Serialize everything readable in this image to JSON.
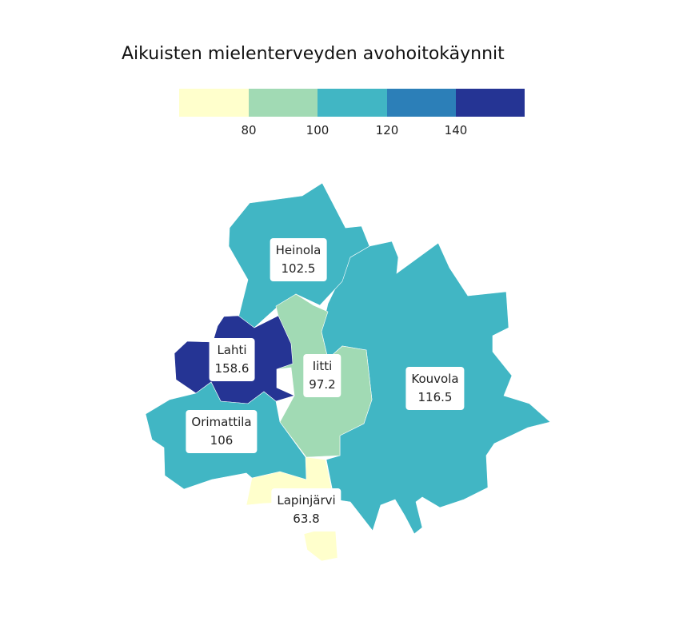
{
  "title": "Aikuisten mielenterveyden avohoitokäynnit",
  "legend": {
    "ticks": [
      "80",
      "100",
      "120",
      "140"
    ],
    "colors": [
      "#ffffcc",
      "#a1dab4",
      "#41b6c4",
      "#2c7fb8",
      "#253494"
    ]
  },
  "regions": [
    {
      "key": "heinola",
      "name": "Heinola",
      "value": "102.5",
      "color": "#41b6c4"
    },
    {
      "key": "kouvola",
      "name": "Kouvola",
      "value": "116.5",
      "color": "#41b6c4"
    },
    {
      "key": "iitti",
      "name": "Iitti",
      "value": "97.2",
      "color": "#a1dab4"
    },
    {
      "key": "lahti",
      "name": "Lahti",
      "value": "158.6",
      "color": "#253494"
    },
    {
      "key": "orimattila",
      "name": "Orimattila",
      "value": "106",
      "color": "#41b6c4"
    },
    {
      "key": "lapinjarvi",
      "name": "Lapinjärvi",
      "value": "63.8",
      "color": "#ffffcc"
    }
  ]
}
